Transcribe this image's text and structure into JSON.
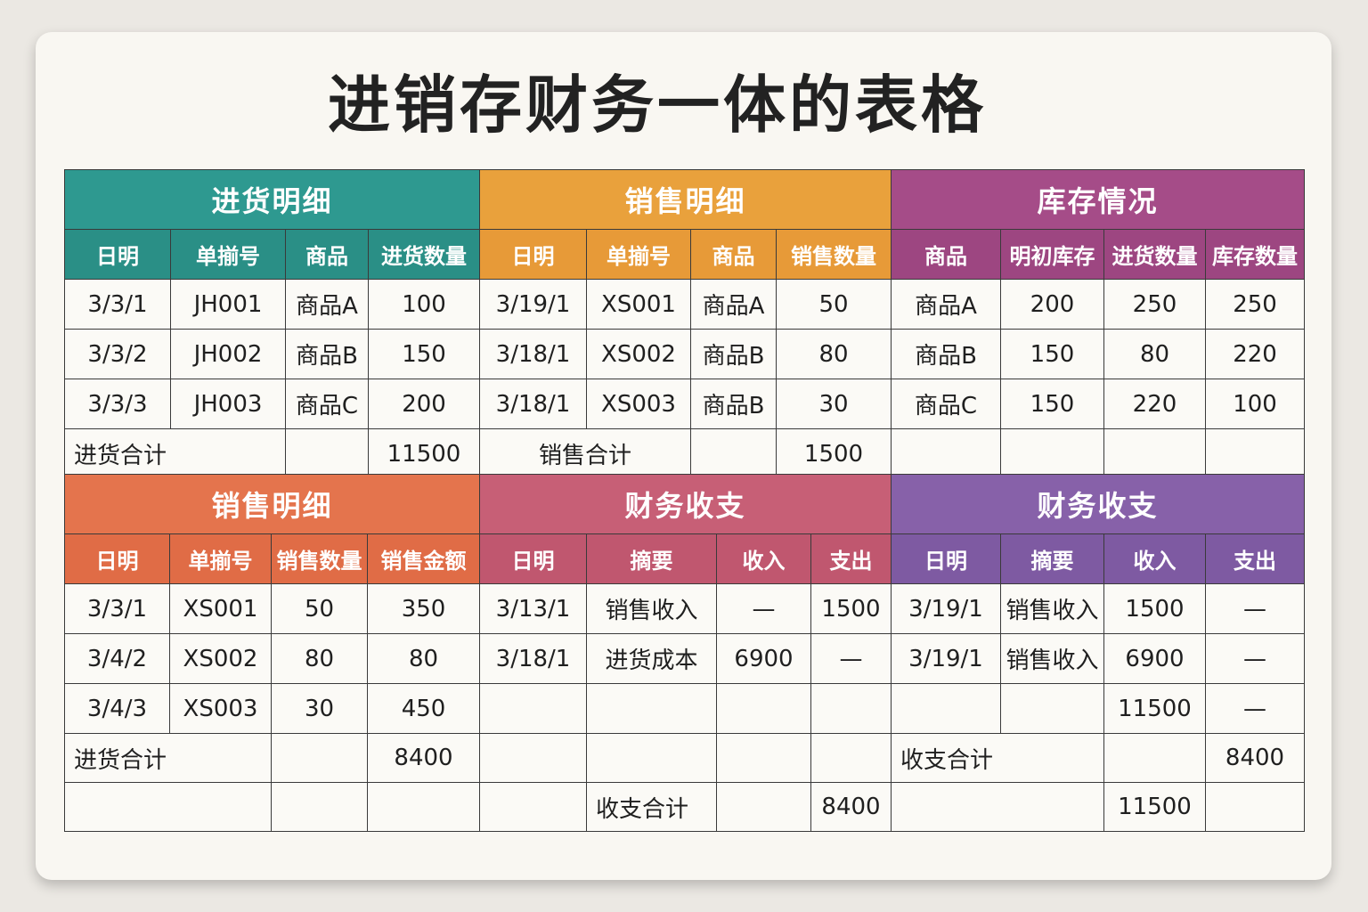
{
  "title": "进销存财务一体的表格",
  "purchase": {
    "title": "进货明细",
    "headers": [
      "日明",
      "单揃号",
      "商品",
      "进货数量"
    ],
    "rows": [
      [
        "3/3/1",
        "JH001",
        "商品A",
        "100"
      ],
      [
        "3/3/2",
        "JH002",
        "商品B",
        "150"
      ],
      [
        "3/3/3",
        "JH003",
        "商品C",
        "200"
      ]
    ],
    "total_label": "进货合计",
    "total_value": "11500"
  },
  "sales": {
    "title": "销售明细",
    "headers": [
      "日明",
      "单揃号",
      "商品",
      "销售数量"
    ],
    "rows": [
      [
        "3/19/1",
        "XS001",
        "商品A",
        "50"
      ],
      [
        "3/18/1",
        "XS002",
        "商品B",
        "80"
      ],
      [
        "3/18/1",
        "XS003",
        "商品B",
        "30"
      ]
    ],
    "total_label": "销售合计",
    "total_value": "1500"
  },
  "inventory": {
    "title": "库存情况",
    "headers": [
      "商品",
      "明初库存",
      "进货数量",
      "库存数量"
    ],
    "rows": [
      [
        "商品A",
        "200",
        "250",
        "250"
      ],
      [
        "商品B",
        "150",
        "80",
        "220"
      ],
      [
        "商品C",
        "150",
        "220",
        "100"
      ]
    ]
  },
  "sales2": {
    "title": "销售明细",
    "headers": [
      "日明",
      "单揃号",
      "销售数量",
      "销售金额"
    ],
    "rows": [
      [
        "3/3/1",
        "XS001",
        "50",
        "350"
      ],
      [
        "3/4/2",
        "XS002",
        "80",
        "80"
      ],
      [
        "3/4/3",
        "XS003",
        "30",
        "450"
      ]
    ],
    "total_label": "进货合计",
    "total_value": "8400"
  },
  "finance1": {
    "title": "财务收支",
    "headers": [
      "日明",
      "摘要",
      "收入",
      "支出"
    ],
    "rows": [
      [
        "3/13/1",
        "销售收入",
        "—",
        "1500"
      ],
      [
        "3/18/1",
        "进货成本",
        "6900",
        "—"
      ]
    ],
    "total_label": "收支合计",
    "total_value": "8400"
  },
  "finance2": {
    "title": "财务收支",
    "headers": [
      "日明",
      "摘要",
      "收入",
      "支出"
    ],
    "rows": [
      [
        "3/19/1",
        "销售收入",
        "1500",
        "—"
      ],
      [
        "3/19/1",
        "销售收入",
        "6900",
        "—"
      ],
      [
        "",
        "",
        "11500",
        "—"
      ]
    ],
    "total_label": "收支合计",
    "total_value": "8400",
    "extra_value": "11500"
  },
  "colors": {
    "purchase": "#2e9990",
    "sales": "#e9a13c",
    "inventory": "#a54c88",
    "sales2": "#e4744d",
    "finance1": "#c75f76",
    "finance2": "#8761a9"
  }
}
